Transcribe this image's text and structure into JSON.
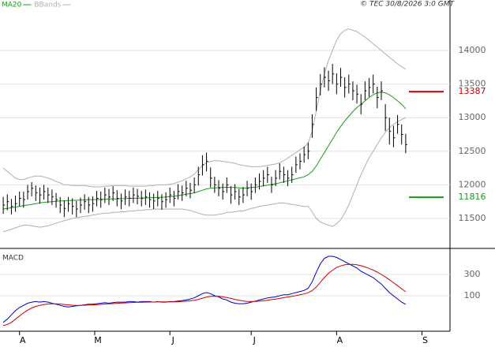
{
  "chart_data": [
    {
      "type": "ohlc",
      "copyright": "© TEC 30/8/2026 3:0 GMT",
      "xlim": [
        -0.8,
        109.9
      ],
      "ylim": [
        11054,
        14751
      ],
      "yticks": [
        11500,
        12000,
        12500,
        13000,
        13500,
        14000
      ],
      "grid": true,
      "close": [
        11700,
        11750,
        11680,
        11720,
        11800,
        11780,
        11900,
        11950,
        11880,
        11850,
        11900,
        11850,
        11820,
        11780,
        11700,
        11650,
        11720,
        11680,
        11640,
        11700,
        11750,
        11700,
        11720,
        11800,
        11780,
        11850,
        11820,
        11880,
        11800,
        11760,
        11820,
        11800,
        11850,
        11830,
        11800,
        11820,
        11780,
        11760,
        11800,
        11750,
        11780,
        11850,
        11800,
        11900,
        11880,
        11950,
        11920,
        12000,
        12150,
        12300,
        12350,
        12100,
        12000,
        11950,
        11900,
        12000,
        11850,
        11900,
        11820,
        11850,
        11950,
        11900,
        12000,
        12050,
        12100,
        12150,
        12000,
        12100,
        12200,
        12150,
        12100,
        12150,
        12300,
        12350,
        12450,
        12500,
        12900,
        13300,
        13500,
        13600,
        13550,
        13650,
        13500,
        13600,
        13450,
        13500,
        13400,
        13350,
        13200,
        13400,
        13450,
        13500,
        13300,
        13400,
        13000,
        12800,
        12700,
        12900,
        12750,
        12600
      ],
      "high": [
        11820,
        11860,
        11790,
        11840,
        11900,
        11900,
        12000,
        12040,
        11990,
        11960,
        12000,
        11960,
        11930,
        11880,
        11820,
        11770,
        11820,
        11800,
        11760,
        11810,
        11860,
        11820,
        11830,
        11910,
        11900,
        11960,
        11940,
        11980,
        11920,
        11870,
        11930,
        11910,
        11960,
        11940,
        11910,
        11930,
        11890,
        11870,
        11910,
        11860,
        11890,
        11960,
        11910,
        12010,
        11990,
        12060,
        12030,
        12110,
        12270,
        12440,
        12480,
        12260,
        12120,
        12070,
        12020,
        12110,
        11980,
        12010,
        11940,
        11970,
        12060,
        12020,
        12110,
        12170,
        12220,
        12270,
        12120,
        12220,
        12320,
        12270,
        12220,
        12270,
        12420,
        12470,
        12570,
        12630,
        13050,
        13450,
        13650,
        13750,
        13700,
        13800,
        13660,
        13740,
        13600,
        13640,
        13540,
        13490,
        13350,
        13540,
        13590,
        13640,
        13460,
        13540,
        13200,
        13000,
        12880,
        13040,
        12900,
        12760
      ],
      "low": [
        11570,
        11620,
        11560,
        11600,
        11680,
        11660,
        11780,
        11830,
        11760,
        11720,
        11780,
        11730,
        11700,
        11660,
        11580,
        11520,
        11600,
        11560,
        11520,
        11580,
        11630,
        11580,
        11600,
        11680,
        11660,
        11730,
        11700,
        11760,
        11680,
        11640,
        11700,
        11680,
        11730,
        11710,
        11680,
        11700,
        11660,
        11640,
        11680,
        11630,
        11660,
        11730,
        11680,
        11780,
        11760,
        11830,
        11800,
        11880,
        11990,
        12140,
        12200,
        11960,
        11880,
        11830,
        11780,
        11880,
        11720,
        11780,
        11700,
        11730,
        11830,
        11780,
        11880,
        11930,
        11980,
        12030,
        11880,
        11980,
        12080,
        12030,
        11980,
        12030,
        12180,
        12230,
        12330,
        12380,
        12700,
        13100,
        13330,
        13450,
        13400,
        13500,
        13350,
        13460,
        13300,
        13360,
        13260,
        13210,
        13050,
        13260,
        13310,
        13360,
        13140,
        13260,
        12800,
        12600,
        12560,
        12760,
        12600,
        12470
      ],
      "bar_color": "#000000",
      "series": [
        {
          "name": "MA20",
          "color": "#1a9a1a",
          "values": [
            11640,
            11650,
            11660,
            11670,
            11680,
            11690,
            11700,
            11710,
            11720,
            11730,
            11740,
            11745,
            11750,
            11755,
            11760,
            11760,
            11765,
            11770,
            11770,
            11775,
            11775,
            11780,
            11780,
            11780,
            11785,
            11785,
            11790,
            11790,
            11790,
            11795,
            11795,
            11800,
            11800,
            11800,
            11805,
            11805,
            11810,
            11810,
            11815,
            11815,
            11820,
            11825,
            11830,
            11840,
            11850,
            11860,
            11870,
            11880,
            11900,
            11920,
            11940,
            11950,
            11955,
            11960,
            11960,
            11965,
            11960,
            11960,
            11955,
            11950,
            11955,
            11960,
            11965,
            11975,
            11985,
            11995,
            12005,
            12015,
            12030,
            12045,
            12060,
            12075,
            12090,
            12105,
            12120,
            12150,
            12200,
            12280,
            12380,
            12480,
            12580,
            12680,
            12780,
            12870,
            12950,
            13020,
            13090,
            13150,
            13200,
            13250,
            13300,
            13340,
            13370,
            13380,
            13370,
            13340,
            13300,
            13250,
            13200,
            13130
          ]
        }
      ],
      "bands": {
        "name": "BBands",
        "color": "#b0b0b0",
        "upper": [
          12250,
          12200,
          12150,
          12100,
          12080,
          12080,
          12100,
          12120,
          12130,
          12130,
          12120,
          12100,
          12080,
          12050,
          12030,
          12000,
          12000,
          11990,
          11990,
          11990,
          11990,
          11980,
          11970,
          11970,
          11970,
          11980,
          11980,
          11990,
          11990,
          11990,
          11990,
          11980,
          11980,
          11980,
          11980,
          11980,
          11990,
          11990,
          12000,
          12000,
          12000,
          12010,
          12020,
          12040,
          12060,
          12090,
          12120,
          12160,
          12220,
          12290,
          12330,
          12350,
          12360,
          12360,
          12350,
          12340,
          12330,
          12320,
          12300,
          12290,
          12280,
          12270,
          12270,
          12270,
          12280,
          12290,
          12300,
          12310,
          12330,
          12360,
          12400,
          12440,
          12480,
          12520,
          12560,
          12620,
          12800,
          13100,
          13400,
          13650,
          13850,
          14000,
          14150,
          14250,
          14300,
          14320,
          14300,
          14280,
          14240,
          14200,
          14150,
          14100,
          14050,
          14000,
          13950,
          13900,
          13850,
          13800,
          13760,
          13720
        ],
        "lower": [
          11300,
          11320,
          11340,
          11360,
          11380,
          11400,
          11400,
          11390,
          11380,
          11370,
          11380,
          11390,
          11410,
          11430,
          11450,
          11470,
          11480,
          11500,
          11510,
          11520,
          11530,
          11540,
          11550,
          11560,
          11570,
          11580,
          11580,
          11590,
          11590,
          11600,
          11600,
          11610,
          11610,
          11620,
          11620,
          11630,
          11630,
          11640,
          11640,
          11640,
          11640,
          11640,
          11640,
          11640,
          11640,
          11630,
          11620,
          11600,
          11580,
          11560,
          11550,
          11550,
          11550,
          11560,
          11570,
          11590,
          11590,
          11600,
          11610,
          11610,
          11630,
          11650,
          11660,
          11680,
          11690,
          11700,
          11710,
          11720,
          11730,
          11730,
          11720,
          11710,
          11700,
          11690,
          11680,
          11680,
          11600,
          11500,
          11450,
          11420,
          11400,
          11380,
          11420,
          11480,
          11580,
          11700,
          11850,
          12000,
          12150,
          12280,
          12400,
          12500,
          12600,
          12700,
          12780,
          12850,
          12900,
          12940,
          12970,
          13000
        ]
      },
      "levels": [
        {
          "value": 13387,
          "color": "#c00000"
        },
        {
          "value": 11816,
          "color": "#1a9a1a"
        }
      ]
    },
    {
      "type": "macd",
      "title": "MACD",
      "xlim": [
        -0.8,
        109.9
      ],
      "ylim": [
        -233,
        522
      ],
      "yticks": [
        100,
        300
      ],
      "grid": true,
      "xticks": [
        {
          "value": 4,
          "label": "A"
        },
        {
          "value": 22.5,
          "label": "M"
        },
        {
          "value": 41,
          "label": "J"
        },
        {
          "value": 61,
          "label": "J"
        },
        {
          "value": 82,
          "label": "A"
        },
        {
          "value": 103,
          "label": "S"
        }
      ],
      "series": [
        {
          "color": "#0000cc",
          "values": [
            -150,
            -120,
            -80,
            -40,
            -10,
            10,
            30,
            40,
            45,
            40,
            45,
            40,
            30,
            20,
            10,
            0,
            -5,
            0,
            5,
            10,
            15,
            20,
            20,
            25,
            30,
            35,
            30,
            35,
            40,
            40,
            40,
            45,
            45,
            40,
            45,
            45,
            45,
            40,
            45,
            40,
            40,
            45,
            45,
            50,
            55,
            60,
            70,
            80,
            100,
            120,
            130,
            120,
            100,
            90,
            70,
            60,
            40,
            30,
            25,
            25,
            30,
            40,
            50,
            60,
            70,
            80,
            85,
            90,
            100,
            110,
            110,
            120,
            130,
            140,
            150,
            170,
            230,
            320,
            400,
            450,
            470,
            470,
            460,
            440,
            420,
            400,
            380,
            360,
            330,
            310,
            290,
            270,
            240,
            210,
            170,
            130,
            100,
            70,
            40,
            20
          ]
        },
        {
          "color": "#cc0000",
          "values": [
            -180,
            -170,
            -150,
            -120,
            -90,
            -60,
            -35,
            -15,
            0,
            10,
            18,
            22,
            24,
            24,
            22,
            18,
            14,
            11,
            10,
            10,
            11,
            13,
            14,
            16,
            19,
            22,
            24,
            26,
            29,
            31,
            33,
            35,
            37,
            38,
            39,
            40,
            41,
            41,
            42,
            42,
            42,
            42,
            43,
            44,
            46,
            49,
            53,
            58,
            66,
            77,
            88,
            94,
            96,
            95,
            90,
            84,
            75,
            66,
            58,
            51,
            47,
            45,
            46,
            49,
            53,
            58,
            64,
            69,
            75,
            82,
            88,
            94,
            101,
            109,
            117,
            128,
            148,
            182,
            225,
            270,
            310,
            340,
            365,
            380,
            390,
            395,
            395,
            390,
            382,
            370,
            357,
            341,
            322,
            300,
            276,
            250,
            222,
            194,
            166,
            137
          ]
        }
      ]
    }
  ]
}
